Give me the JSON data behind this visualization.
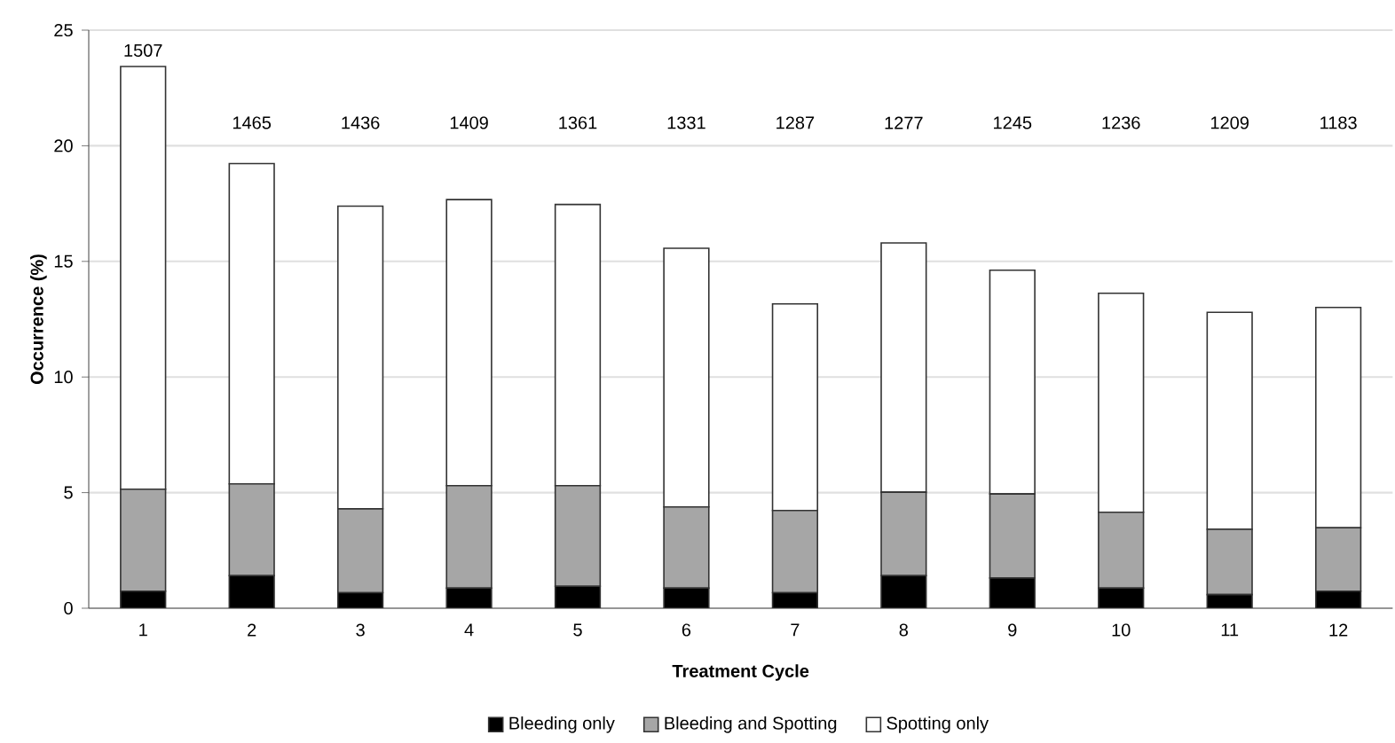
{
  "chart_data": {
    "type": "bar",
    "stacked": true,
    "xlabel": "Treatment Cycle",
    "ylabel": "Occurrence (%)",
    "categories": [
      "1",
      "2",
      "3",
      "4",
      "5",
      "6",
      "7",
      "8",
      "9",
      "10",
      "11",
      "12"
    ],
    "series": [
      {
        "name": "Bleeding only",
        "color": "#000000",
        "values": [
          0.74,
          1.41,
          0.67,
          0.87,
          0.95,
          0.87,
          0.67,
          1.41,
          1.31,
          0.87,
          0.59,
          0.74
        ]
      },
      {
        "name": "Bleeding and Spotting",
        "color": "#a6a6a6",
        "values": [
          4.41,
          3.97,
          3.63,
          4.43,
          4.35,
          3.51,
          3.56,
          3.61,
          3.63,
          3.28,
          2.82,
          2.74
        ]
      },
      {
        "name": "Spotting only",
        "color": "#ffffff",
        "values": [
          18.28,
          13.85,
          13.09,
          12.37,
          12.16,
          11.19,
          8.93,
          10.78,
          9.68,
          9.47,
          9.39,
          9.53
        ]
      }
    ],
    "ylim": [
      0,
      25
    ],
    "yticks": [
      0,
      5,
      10,
      15,
      20,
      25
    ],
    "grid": "y",
    "legend": "bottom",
    "annotations": [
      "1507",
      "1465",
      "1436",
      "1409",
      "1361",
      "1331",
      "1287",
      "1277",
      "1245",
      "1236",
      "1209",
      "1183"
    ]
  }
}
